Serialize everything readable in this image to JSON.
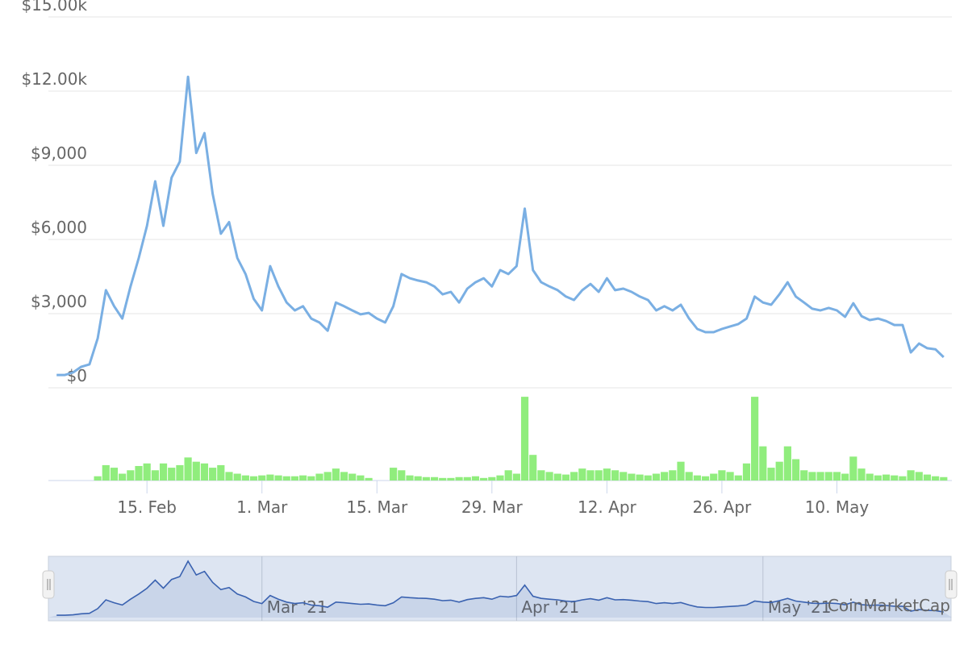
{
  "chart_data": {
    "type": "line",
    "x": [
      "2021-02-04",
      "2021-02-05",
      "2021-02-06",
      "2021-02-07",
      "2021-02-08",
      "2021-02-09",
      "2021-02-10",
      "2021-02-11",
      "2021-02-12",
      "2021-02-13",
      "2021-02-14",
      "2021-02-15",
      "2021-02-16",
      "2021-02-17",
      "2021-02-18",
      "2021-02-19",
      "2021-02-20",
      "2021-02-21",
      "2021-02-22",
      "2021-02-23",
      "2021-02-24",
      "2021-02-25",
      "2021-02-26",
      "2021-02-27",
      "2021-02-28",
      "2021-03-01",
      "2021-03-02",
      "2021-03-03",
      "2021-03-04",
      "2021-03-05",
      "2021-03-06",
      "2021-03-07",
      "2021-03-08",
      "2021-03-09",
      "2021-03-10",
      "2021-03-11",
      "2021-03-12",
      "2021-03-13",
      "2021-03-14",
      "2021-03-15",
      "2021-03-16",
      "2021-03-17",
      "2021-03-18",
      "2021-03-19",
      "2021-03-20",
      "2021-03-21",
      "2021-03-22",
      "2021-03-23",
      "2021-03-24",
      "2021-03-25",
      "2021-03-26",
      "2021-03-27",
      "2021-03-28",
      "2021-03-29",
      "2021-03-30",
      "2021-03-31",
      "2021-04-01",
      "2021-04-02",
      "2021-04-03",
      "2021-04-04",
      "2021-04-05",
      "2021-04-06",
      "2021-04-07",
      "2021-04-08",
      "2021-04-09",
      "2021-04-10",
      "2021-04-11",
      "2021-04-12",
      "2021-04-13",
      "2021-04-14",
      "2021-04-15",
      "2021-04-16",
      "2021-04-17",
      "2021-04-18",
      "2021-04-19",
      "2021-04-20",
      "2021-04-21",
      "2021-04-22",
      "2021-04-23",
      "2021-04-24",
      "2021-04-25",
      "2021-04-26",
      "2021-04-27",
      "2021-04-28",
      "2021-04-29",
      "2021-04-30",
      "2021-05-01",
      "2021-05-02",
      "2021-05-03",
      "2021-05-04",
      "2021-05-05",
      "2021-05-06",
      "2021-05-07",
      "2021-05-08",
      "2021-05-09",
      "2021-05-10",
      "2021-05-11",
      "2021-05-12",
      "2021-05-13",
      "2021-05-14",
      "2021-05-15",
      "2021-05-16",
      "2021-05-17",
      "2021-05-18",
      "2021-05-19",
      "2021-05-20",
      "2021-05-21",
      "2021-05-22",
      "2021-05-23"
    ],
    "series": [
      {
        "color": "#7aafe3",
        "values": [
          520,
          520,
          620,
          850,
          950,
          2000,
          3950,
          3300,
          2800,
          4100,
          5250,
          6550,
          8350,
          6550,
          8500,
          9150,
          12580,
          9500,
          10300,
          7850,
          6230,
          6700,
          5250,
          4600,
          3600,
          3130,
          4920,
          4100,
          3450,
          3130,
          3300,
          2800,
          2640,
          2310,
          3450,
          3300,
          3130,
          2970,
          3030,
          2800,
          2640,
          3300,
          4600,
          4430,
          4340,
          4270,
          4100,
          3780,
          3880,
          3450,
          4010,
          4270,
          4430,
          4100,
          4760,
          4600,
          4920,
          7250,
          4760,
          4270,
          4100,
          3950,
          3690,
          3550,
          3950,
          4200,
          3880,
          4430,
          3950,
          4010,
          3880,
          3690,
          3550,
          3130,
          3300,
          3130,
          3360,
          2800,
          2380,
          2250,
          2250,
          2380,
          2480,
          2580,
          2800,
          3690,
          3450,
          3360,
          3780,
          4270,
          3690,
          3450,
          3200,
          3130,
          3230,
          3130,
          2870,
          3420,
          2900,
          2740,
          2800,
          2700,
          2540,
          2540,
          1430,
          1790,
          1600,
          1560,
          1240
        ]
      },
      {
        "type": "bar",
        "axis": "y2",
        "color": "#90ed7d",
        "values": [
          0,
          0,
          0,
          0,
          0,
          5,
          18,
          15,
          8,
          12,
          17,
          20,
          12,
          20,
          15,
          18,
          27,
          22,
          20,
          15,
          18,
          10,
          8,
          6,
          5,
          6,
          7,
          6,
          5,
          5,
          6,
          5,
          8,
          10,
          14,
          10,
          8,
          6,
          3,
          0,
          0,
          15,
          12,
          6,
          5,
          4,
          4,
          3,
          3,
          4,
          4,
          5,
          3,
          4,
          6,
          12,
          8,
          98,
          30,
          12,
          10,
          8,
          7,
          10,
          14,
          12,
          12,
          14,
          12,
          10,
          8,
          7,
          6,
          8,
          10,
          12,
          22,
          10,
          6,
          5,
          8,
          12,
          10,
          6,
          20,
          98,
          40,
          15,
          22,
          40,
          25,
          12,
          10,
          10,
          10,
          10,
          8,
          28,
          14,
          8,
          6,
          7,
          6,
          5,
          12,
          10,
          7,
          5,
          4
        ]
      }
    ],
    "xlim": [
      "2021-02-03",
      "2021-05-24"
    ],
    "xticks": [
      {
        "value": "2021-02-15",
        "label": "15. Feb"
      },
      {
        "value": "2021-03-01",
        "label": "1. Mar"
      },
      {
        "value": "2021-03-15",
        "label": "15. Mar"
      },
      {
        "value": "2021-03-29",
        "label": "29. Mar"
      },
      {
        "value": "2021-04-12",
        "label": "12. Apr"
      },
      {
        "value": "2021-04-26",
        "label": "26. Apr"
      },
      {
        "value": "2021-05-10",
        "label": "10. May"
      }
    ],
    "ylim": [
      0,
      15000
    ],
    "yticks": [
      {
        "value": 0,
        "label": "$0"
      },
      {
        "value": 3000,
        "label": "$3,000"
      },
      {
        "value": 6000,
        "label": "$6,000"
      },
      {
        "value": 9000,
        "label": "$9,000"
      },
      {
        "value": 12000,
        "label": "$12.00k"
      },
      {
        "value": 15000,
        "label": "$15.00k"
      }
    ],
    "y2lim": [
      0,
      100
    ],
    "grid": true,
    "navigator": {
      "xticks": [
        {
          "value": "2021-03-01",
          "label": "Mar '21"
        },
        {
          "value": "2021-04-01",
          "label": "Apr '21"
        },
        {
          "value": "2021-05-01",
          "label": "May '21"
        }
      ],
      "watermark": "CoinMarketCap"
    }
  }
}
